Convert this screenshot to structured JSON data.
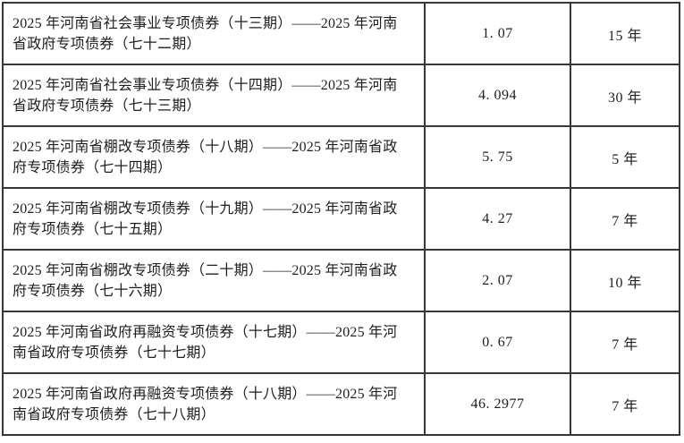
{
  "page": {
    "background_color": "#ffffff",
    "border_color": "#373737",
    "text_color": "#1e1e1e"
  },
  "table": {
    "description": "bond-issuance-table",
    "columns": [
      "bond-name",
      "amount",
      "term"
    ],
    "rows": [
      {
        "name": "2025 年河南省社会事业专项债券（十三期）——2025 年河南省政府专项债券（七十二期）",
        "amount": "1. 07",
        "term": "15 年"
      },
      {
        "name": "2025 年河南省社会事业专项债券（十四期）——2025 年河南省政府专项债券（七十三期）",
        "amount": "4. 094",
        "term": "30 年"
      },
      {
        "name": "2025 年河南省棚改专项债券（十八期）——2025 年河南省政府专项债券（七十四期）",
        "amount": "5. 75",
        "term": "5 年"
      },
      {
        "name": "2025 年河南省棚改专项债券（十九期）——2025 年河南省政府专项债券（七十五期）",
        "amount": "4. 27",
        "term": "7 年"
      },
      {
        "name": "2025 年河南省棚改专项债券（二十期）——2025 年河南省政府专项债券（七十六期）",
        "amount": "2. 07",
        "term": "10 年"
      },
      {
        "name": "2025 年河南省政府再融资专项债券（十七期）——2025 年河南省政府专项债券（七十七期）",
        "amount": "0. 67",
        "term": "7 年"
      },
      {
        "name": "2025 年河南省政府再融资专项债券（十八期）——2025 年河南省政府专项债券（七十八期）",
        "amount": "46. 2977",
        "term": "7 年"
      }
    ]
  }
}
